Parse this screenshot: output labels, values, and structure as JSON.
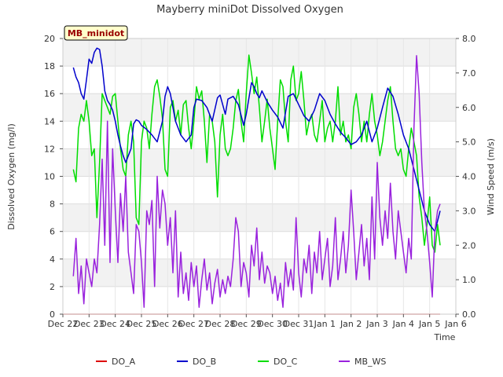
{
  "chart_data": {
    "type": "line",
    "title": "Mayberry miniDot Dissolved Oxygen",
    "badge": "MB_minidot",
    "xlabel": "Time",
    "ylabel": "Dissolved Oxygen (mg/l)",
    "y2label": "Wind Speed (m/s)",
    "x_ticks": [
      "Dec 22",
      "Dec 23",
      "Dec 24",
      "Dec 25",
      "Dec 26",
      "Dec 27",
      "Dec 28",
      "Dec 29",
      "Dec 30",
      "Dec 31",
      "Jan 1",
      "Jan 2",
      "Jan 3",
      "Jan 4",
      "Jan 5",
      "Jan 6"
    ],
    "xlim": [
      0,
      15
    ],
    "ylim": [
      0,
      20
    ],
    "y_ticks": [
      0,
      2,
      4,
      6,
      8,
      10,
      12,
      14,
      16,
      18,
      20
    ],
    "y2lim": [
      0,
      8.0
    ],
    "y2_ticks": [
      "0.0",
      "1.0",
      "2.0",
      "3.0",
      "4.0",
      "5.0",
      "6.0",
      "7.0",
      "8.0"
    ],
    "legend_placement": "bottom",
    "series": [
      {
        "name": "DO_A",
        "axis": "left",
        "color": "#dd0000",
        "x": [
          0.0,
          14.4
        ],
        "y": [
          0.0,
          0.0
        ]
      },
      {
        "name": "DO_B",
        "axis": "left",
        "color": "#0000cc",
        "x": [
          0.4,
          0.5,
          0.6,
          0.7,
          0.8,
          0.9,
          1.0,
          1.1,
          1.2,
          1.3,
          1.4,
          1.5,
          1.6,
          1.7,
          1.8,
          1.9,
          2.0,
          2.1,
          2.2,
          2.3,
          2.4,
          2.5,
          2.6,
          2.7,
          2.8,
          2.9,
          3.0,
          3.2,
          3.4,
          3.6,
          3.8,
          3.9,
          4.0,
          4.1,
          4.2,
          4.3,
          4.4,
          4.5,
          4.7,
          4.9,
          5.0,
          5.1,
          5.3,
          5.5,
          5.7,
          5.9,
          6.0,
          6.2,
          6.3,
          6.5,
          6.7,
          6.9,
          7.0,
          7.2,
          7.3,
          7.4,
          7.5,
          7.6,
          7.8,
          8.0,
          8.2,
          8.4,
          8.6,
          8.8,
          9.0,
          9.2,
          9.4,
          9.6,
          9.8,
          10.0,
          10.2,
          10.4,
          10.6,
          10.8,
          11.0,
          11.2,
          11.4,
          11.6,
          11.8,
          12.0,
          12.2,
          12.4,
          12.6,
          12.8,
          13.0,
          13.2,
          13.4,
          13.6,
          13.8,
          14.0,
          14.2,
          14.4
        ],
        "y": [
          17.9,
          17.2,
          16.8,
          16.0,
          15.6,
          17.0,
          18.5,
          18.2,
          19.0,
          19.3,
          19.2,
          18.0,
          16.2,
          15.5,
          15.2,
          14.8,
          14.0,
          13.0,
          12.2,
          11.5,
          11.0,
          11.5,
          12.0,
          13.8,
          14.1,
          14.0,
          13.7,
          13.4,
          13.0,
          12.5,
          14.0,
          15.8,
          16.5,
          16.0,
          15.0,
          14.0,
          13.5,
          13.0,
          12.5,
          13.0,
          15.0,
          15.6,
          15.5,
          15.0,
          14.0,
          15.7,
          15.9,
          14.5,
          15.6,
          15.8,
          15.2,
          13.7,
          14.5,
          16.8,
          16.5,
          16.0,
          15.7,
          16.2,
          15.4,
          14.8,
          14.3,
          13.5,
          15.8,
          16.0,
          15.2,
          14.4,
          14.0,
          14.8,
          16.0,
          15.5,
          14.5,
          13.8,
          13.2,
          12.8,
          12.3,
          12.5,
          13.0,
          14.0,
          12.5,
          13.5,
          15.0,
          16.4,
          15.8,
          14.5,
          13.0,
          12.0,
          10.5,
          9.0,
          7.5,
          6.5,
          6.0,
          7.5
        ]
      },
      {
        "name": "DO_C",
        "axis": "left",
        "color": "#00dd00",
        "x": [
          0.4,
          0.5,
          0.6,
          0.7,
          0.8,
          0.9,
          1.0,
          1.1,
          1.2,
          1.3,
          1.4,
          1.5,
          1.6,
          1.7,
          1.8,
          1.9,
          2.0,
          2.1,
          2.2,
          2.3,
          2.4,
          2.5,
          2.6,
          2.7,
          2.8,
          2.9,
          3.0,
          3.1,
          3.2,
          3.3,
          3.4,
          3.5,
          3.6,
          3.7,
          3.8,
          3.9,
          4.0,
          4.1,
          4.2,
          4.3,
          4.4,
          4.5,
          4.6,
          4.7,
          4.8,
          4.9,
          5.0,
          5.1,
          5.2,
          5.3,
          5.4,
          5.5,
          5.6,
          5.7,
          5.8,
          5.9,
          6.0,
          6.1,
          6.2,
          6.3,
          6.4,
          6.5,
          6.6,
          6.7,
          6.8,
          6.9,
          7.0,
          7.1,
          7.2,
          7.3,
          7.4,
          7.5,
          7.6,
          7.7,
          7.8,
          7.9,
          8.0,
          8.1,
          8.2,
          8.3,
          8.4,
          8.5,
          8.6,
          8.7,
          8.8,
          8.9,
          9.0,
          9.1,
          9.2,
          9.3,
          9.4,
          9.5,
          9.6,
          9.7,
          9.8,
          9.9,
          10.0,
          10.1,
          10.2,
          10.3,
          10.4,
          10.5,
          10.6,
          10.7,
          10.8,
          10.9,
          11.0,
          11.1,
          11.2,
          11.3,
          11.4,
          11.5,
          11.6,
          11.7,
          11.8,
          11.9,
          12.0,
          12.1,
          12.2,
          12.3,
          12.4,
          12.5,
          12.6,
          12.7,
          12.8,
          12.9,
          13.0,
          13.1,
          13.2,
          13.3,
          13.4,
          13.5,
          13.6,
          13.7,
          13.8,
          13.9,
          14.0,
          14.1,
          14.2,
          14.3,
          14.4
        ],
        "y": [
          10.5,
          9.6,
          13.5,
          14.5,
          14.0,
          15.5,
          14.0,
          11.5,
          12.0,
          7.0,
          11.0,
          16.0,
          15.5,
          15.0,
          14.5,
          15.8,
          16.0,
          14.0,
          12.0,
          10.5,
          10.0,
          13.0,
          14.0,
          12.5,
          7.0,
          6.5,
          12.5,
          14.0,
          13.5,
          12.0,
          14.5,
          16.5,
          17.0,
          15.8,
          14.2,
          10.5,
          10.0,
          15.0,
          15.5,
          14.0,
          14.8,
          13.0,
          15.2,
          15.5,
          13.5,
          12.0,
          14.0,
          16.5,
          15.6,
          16.2,
          14.0,
          11.0,
          14.5,
          14.0,
          12.5,
          8.5,
          13.0,
          14.5,
          12.0,
          11.5,
          12.0,
          13.5,
          15.5,
          16.3,
          14.0,
          12.5,
          16.0,
          18.8,
          17.5,
          16.0,
          17.2,
          15.0,
          12.5,
          14.0,
          15.6,
          13.5,
          12.0,
          10.5,
          14.0,
          17.0,
          16.5,
          14.0,
          12.5,
          17.0,
          18.0,
          15.5,
          16.0,
          17.6,
          15.5,
          13.0,
          14.0,
          14.5,
          13.0,
          12.5,
          14.0,
          15.5,
          12.5,
          13.5,
          14.0,
          12.5,
          14.0,
          16.5,
          13.0,
          14.0,
          12.5,
          13.0,
          12.0,
          15.0,
          16.0,
          14.5,
          12.5,
          14.0,
          12.5,
          14.5,
          16.0,
          14.0,
          13.0,
          11.5,
          12.5,
          14.0,
          15.5,
          16.5,
          14.0,
          12.0,
          11.5,
          12.0,
          10.5,
          10.0,
          12.0,
          13.5,
          12.5,
          11.5,
          8.5,
          7.0,
          5.0,
          6.5,
          8.5,
          5.0,
          4.5,
          6.5,
          5.0
        ]
      },
      {
        "name": "MB_WS",
        "axis": "right",
        "color": "#9922dd",
        "x": [
          0.4,
          0.5,
          0.6,
          0.7,
          0.8,
          0.9,
          1.0,
          1.1,
          1.2,
          1.3,
          1.4,
          1.5,
          1.6,
          1.7,
          1.8,
          1.9,
          2.0,
          2.1,
          2.2,
          2.3,
          2.4,
          2.5,
          2.6,
          2.7,
          2.8,
          2.9,
          3.0,
          3.1,
          3.2,
          3.3,
          3.4,
          3.5,
          3.6,
          3.7,
          3.8,
          3.9,
          4.0,
          4.1,
          4.2,
          4.3,
          4.4,
          4.5,
          4.6,
          4.7,
          4.8,
          4.9,
          5.0,
          5.1,
          5.2,
          5.3,
          5.4,
          5.5,
          5.6,
          5.7,
          5.8,
          5.9,
          6.0,
          6.1,
          6.2,
          6.3,
          6.4,
          6.5,
          6.6,
          6.7,
          6.8,
          6.9,
          7.0,
          7.1,
          7.2,
          7.3,
          7.4,
          7.5,
          7.6,
          7.7,
          7.8,
          7.9,
          8.0,
          8.1,
          8.2,
          8.3,
          8.4,
          8.5,
          8.6,
          8.7,
          8.8,
          8.9,
          9.0,
          9.1,
          9.2,
          9.3,
          9.4,
          9.5,
          9.6,
          9.7,
          9.8,
          9.9,
          10.0,
          10.1,
          10.2,
          10.3,
          10.4,
          10.5,
          10.6,
          10.7,
          10.8,
          10.9,
          11.0,
          11.1,
          11.2,
          11.3,
          11.4,
          11.5,
          11.6,
          11.7,
          11.8,
          11.9,
          12.0,
          12.1,
          12.2,
          12.3,
          12.4,
          12.5,
          12.6,
          12.7,
          12.8,
          12.9,
          13.0,
          13.1,
          13.2,
          13.3,
          13.4,
          13.5,
          13.6,
          13.7,
          13.8,
          13.9,
          14.0,
          14.1,
          14.2,
          14.3,
          14.4
        ],
        "y": [
          1.1,
          2.2,
          0.6,
          1.4,
          0.3,
          1.6,
          1.2,
          0.8,
          1.6,
          1.2,
          2.6,
          4.5,
          2.0,
          5.6,
          1.5,
          4.8,
          3.0,
          1.5,
          3.5,
          2.4,
          4.0,
          1.8,
          1.2,
          0.6,
          2.6,
          2.4,
          1.5,
          0.2,
          3.0,
          2.6,
          3.3,
          0.8,
          4.0,
          2.5,
          3.6,
          3.2,
          2.0,
          2.8,
          1.2,
          3.0,
          0.5,
          1.8,
          0.6,
          1.2,
          0.4,
          1.5,
          0.8,
          1.4,
          0.2,
          1.0,
          1.6,
          0.7,
          1.2,
          0.3,
          0.9,
          1.3,
          0.5,
          1.0,
          0.6,
          1.1,
          0.8,
          1.6,
          2.8,
          2.4,
          0.8,
          1.5,
          1.2,
          0.5,
          2.0,
          1.4,
          2.5,
          1.0,
          1.8,
          0.9,
          1.4,
          1.2,
          0.6,
          1.1,
          0.4,
          0.9,
          0.2,
          1.5,
          0.8,
          1.3,
          0.7,
          2.8,
          1.2,
          0.5,
          1.6,
          1.2,
          2.0,
          0.6,
          1.8,
          1.2,
          2.4,
          1.0,
          1.6,
          2.2,
          0.8,
          1.4,
          2.8,
          1.0,
          1.6,
          2.4,
          1.2,
          2.0,
          3.6,
          2.4,
          1.0,
          1.8,
          2.6,
          1.4,
          2.2,
          1.0,
          3.4,
          1.6,
          4.4,
          2.8,
          2.0,
          3.0,
          2.2,
          3.8,
          2.4,
          1.6,
          3.0,
          2.4,
          1.8,
          1.2,
          2.2,
          1.6,
          5.4,
          7.5,
          6.4,
          4.4,
          3.0,
          2.4,
          1.5,
          0.5,
          2.4,
          3.0,
          3.2
        ]
      }
    ]
  }
}
